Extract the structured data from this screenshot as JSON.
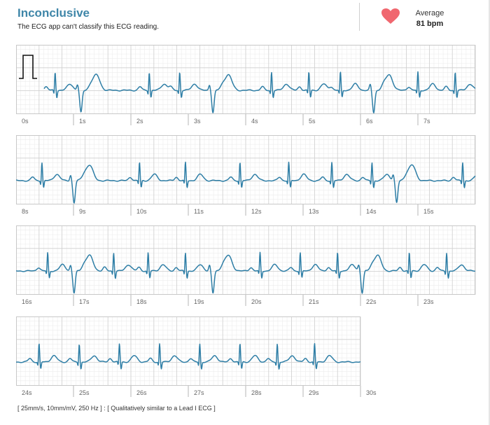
{
  "header": {
    "title": "Inconclusive",
    "subtitle": "The ECG app can't classify this ECG reading.",
    "average_label": "Average",
    "average_value": "81 bpm"
  },
  "footer": {
    "note": "[ 25mm/s, 10mm/mV, 250 Hz ] : [ Qualitatively similar to a Lead I ECG ]"
  },
  "colors": {
    "accent": "#3f86a8",
    "trace": "#2e7ea6",
    "heart": "#f0676f",
    "grid_major": "#cfcfcf",
    "grid_minor": "#ececec"
  },
  "chart_data": {
    "type": "line",
    "x_unit": "s",
    "seconds_per_strip": 8,
    "sampling_rate_hz": 250,
    "strips": [
      {
        "start_s": 0,
        "end_s": 8,
        "tick_labels": [
          "0s",
          "1s",
          "2s",
          "3s",
          "4s",
          "5s",
          "6s",
          "7s"
        ],
        "beats": [
          {
            "t": 0.68,
            "type": "n"
          },
          {
            "t": 1.1,
            "type": "v"
          },
          {
            "t": 2.32,
            "type": "n"
          },
          {
            "t": 2.85,
            "type": "n"
          },
          {
            "t": 3.4,
            "type": "v"
          },
          {
            "t": 4.45,
            "type": "n"
          },
          {
            "t": 5.1,
            "type": "n"
          },
          {
            "t": 5.65,
            "type": "n"
          },
          {
            "t": 6.2,
            "type": "v"
          },
          {
            "t": 7.0,
            "type": "n"
          },
          {
            "t": 7.65,
            "type": "n"
          }
        ],
        "calibration_pulse": true
      },
      {
        "start_s": 8,
        "end_s": 16,
        "tick_labels": [
          "8s",
          "9s",
          "10s",
          "11s",
          "12s",
          "13s",
          "14s",
          "15s"
        ],
        "beats": [
          {
            "t": 8.45,
            "type": "n"
          },
          {
            "t": 8.98,
            "type": "v"
          },
          {
            "t": 10.15,
            "type": "n"
          },
          {
            "t": 10.95,
            "type": "n"
          },
          {
            "t": 11.9,
            "type": "n"
          },
          {
            "t": 12.75,
            "type": "n"
          },
          {
            "t": 13.5,
            "type": "n"
          },
          {
            "t": 14.2,
            "type": "n"
          },
          {
            "t": 14.6,
            "type": "v"
          },
          {
            "t": 15.78,
            "type": "n"
          }
        ],
        "calibration_pulse": false
      },
      {
        "start_s": 16,
        "end_s": 24,
        "tick_labels": [
          "16s",
          "17s",
          "18s",
          "19s",
          "20s",
          "21s",
          "22s",
          "23s"
        ],
        "beats": [
          {
            "t": 16.55,
            "type": "n"
          },
          {
            "t": 16.98,
            "type": "v"
          },
          {
            "t": 17.7,
            "type": "n"
          },
          {
            "t": 18.3,
            "type": "n"
          },
          {
            "t": 18.95,
            "type": "n"
          },
          {
            "t": 19.4,
            "type": "v"
          },
          {
            "t": 20.25,
            "type": "n"
          },
          {
            "t": 20.95,
            "type": "n"
          },
          {
            "t": 21.6,
            "type": "n"
          },
          {
            "t": 22.0,
            "type": "v"
          },
          {
            "t": 22.85,
            "type": "n"
          },
          {
            "t": 23.5,
            "type": "n"
          }
        ],
        "calibration_pulse": false
      },
      {
        "start_s": 24,
        "end_s": 30,
        "tick_labels": [
          "24s",
          "25s",
          "26s",
          "27s",
          "28s",
          "29s",
          "30s"
        ],
        "beats": [
          {
            "t": 24.4,
            "type": "n"
          },
          {
            "t": 25.1,
            "type": "n"
          },
          {
            "t": 25.8,
            "type": "n"
          },
          {
            "t": 26.5,
            "type": "n"
          },
          {
            "t": 27.2,
            "type": "n"
          },
          {
            "t": 27.9,
            "type": "n"
          },
          {
            "t": 28.55,
            "type": "n"
          },
          {
            "t": 29.2,
            "type": "n"
          }
        ],
        "calibration_pulse": false
      }
    ]
  }
}
